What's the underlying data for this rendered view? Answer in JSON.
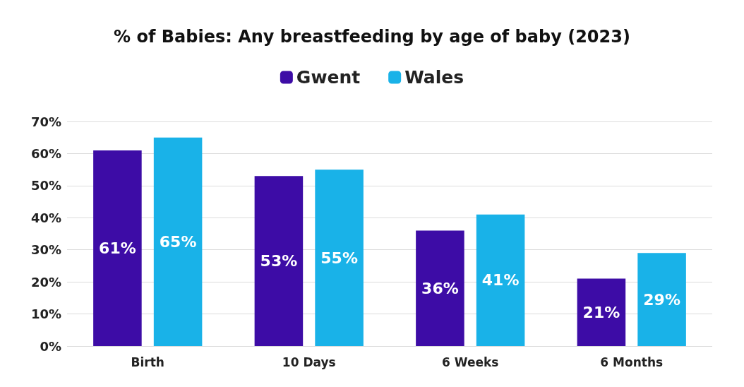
{
  "chart_data": {
    "type": "bar",
    "title": "% of Babies: Any breastfeeding by age of baby (2023)",
    "categories": [
      "Birth",
      "10 Days",
      "6 Weeks",
      "6 Months"
    ],
    "series": [
      {
        "name": "Gwent",
        "color": "#3d0ca6",
        "values": [
          61,
          53,
          36,
          21
        ],
        "value_labels": [
          "61%",
          "53%",
          "36%",
          "21%"
        ]
      },
      {
        "name": "Wales",
        "color": "#19b2e8",
        "values": [
          65,
          55,
          41,
          29
        ],
        "value_labels": [
          "65%",
          "55%",
          "41%",
          "29%"
        ]
      }
    ],
    "ylim": [
      0,
      70
    ],
    "yticks": [
      {
        "value": 0,
        "label": "0%"
      },
      {
        "value": 10,
        "label": "10%"
      },
      {
        "value": 20,
        "label": "20%"
      },
      {
        "value": 30,
        "label": "30%"
      },
      {
        "value": 40,
        "label": "40%"
      },
      {
        "value": 50,
        "label": "50%"
      },
      {
        "value": 60,
        "label": "60%"
      },
      {
        "value": 70,
        "label": "70%"
      }
    ],
    "grid": "y",
    "legend": "top"
  }
}
